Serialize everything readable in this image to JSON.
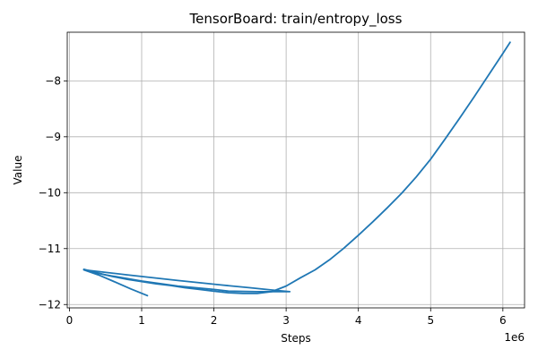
{
  "chart_data": {
    "type": "line",
    "title": "TensorBoard: train/entropy_loss",
    "xlabel": "Steps",
    "ylabel": "Value",
    "x_offset_label": "1e6",
    "x_scale": 1000000,
    "xlim": [
      -30000,
      6300000
    ],
    "ylim": [
      -12.06,
      -7.13
    ],
    "x_ticks": [
      0,
      1000000,
      2000000,
      3000000,
      4000000,
      5000000,
      6000000
    ],
    "x_tick_labels": [
      "0",
      "1",
      "2",
      "3",
      "4",
      "5",
      "6"
    ],
    "y_ticks": [
      -12,
      -11,
      -10,
      -9,
      -8
    ],
    "y_tick_labels": [
      "−12",
      "−11",
      "−10",
      "−9",
      "−8"
    ],
    "grid": true,
    "line_color": "#1f77b4",
    "series": [
      {
        "x": [
          1080000,
          850000,
          600000,
          400000,
          200000,
          500000,
          1000000,
          1500000,
          2000000,
          2200000,
          2600000,
          3000000,
          3050000,
          2800000,
          2500000,
          2100000,
          1500000,
          800000,
          200000
        ],
        "y": [
          -11.84,
          -11.72,
          -11.58,
          -11.47,
          -11.38,
          -11.47,
          -11.58,
          -11.67,
          -11.73,
          -11.76,
          -11.77,
          -11.77,
          -11.77,
          -11.74,
          -11.7,
          -11.65,
          -11.57,
          -11.47,
          -11.38
        ]
      },
      {
        "x": [
          200000,
          400000,
          600000,
          800000,
          1000000,
          1200000,
          1400000,
          1600000,
          1800000,
          2000000,
          2200000,
          2400000,
          2600000,
          2800000,
          3000000,
          3200000,
          3400000,
          3600000,
          3800000,
          4000000,
          4200000,
          4400000,
          4600000,
          4800000,
          5000000,
          5200000,
          5400000,
          5600000,
          5800000,
          6000000,
          6100000
        ],
        "y": [
          -11.37,
          -11.44,
          -11.5,
          -11.55,
          -11.59,
          -11.63,
          -11.66,
          -11.7,
          -11.73,
          -11.76,
          -11.79,
          -11.8,
          -11.8,
          -11.77,
          -11.67,
          -11.52,
          -11.38,
          -11.2,
          -10.99,
          -10.76,
          -10.52,
          -10.27,
          -10.01,
          -9.72,
          -9.4,
          -9.04,
          -8.67,
          -8.29,
          -7.9,
          -7.51,
          -7.31
        ]
      }
    ]
  }
}
